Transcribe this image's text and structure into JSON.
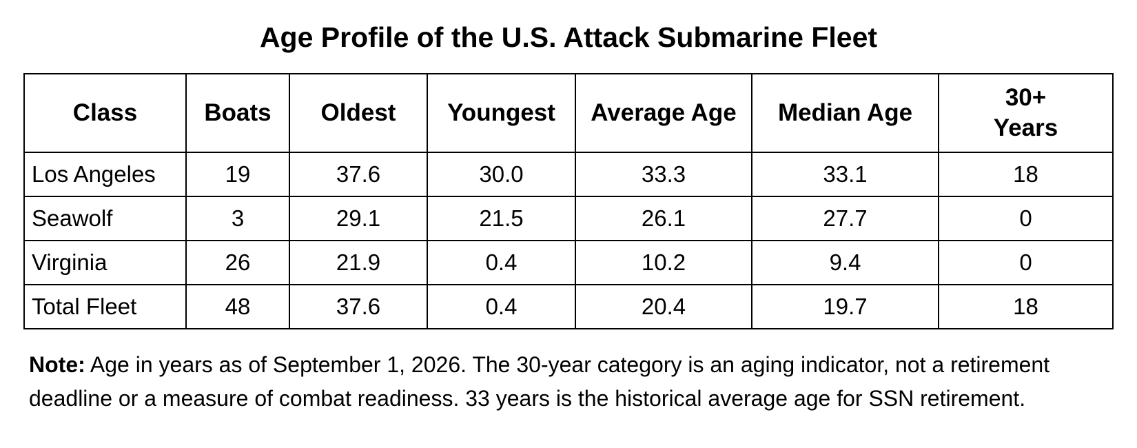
{
  "title": "Age Profile of the U.S. Attack Submarine Fleet",
  "table": {
    "headers": [
      "Class",
      "Boats",
      "Oldest",
      "Youngest",
      "Average Age",
      "Median Age",
      "30+ Years"
    ],
    "rows": [
      [
        "Los Angeles",
        "19",
        "37.6",
        "30.0",
        "33.3",
        "33.1",
        "18"
      ],
      [
        "Seawolf",
        "3",
        "29.1",
        "21.5",
        "26.1",
        "27.7",
        "0"
      ],
      [
        "Virginia",
        "26",
        "21.9",
        "0.4",
        "10.2",
        "9.4",
        "0"
      ],
      [
        "Total Fleet",
        "48",
        "37.6",
        "0.4",
        "20.4",
        "19.7",
        "18"
      ]
    ]
  },
  "note": {
    "label": "Note:",
    "text": " Age in years as of September 1, 2026. The 30-year category is an aging indicator, not a retirement deadline or a measure of combat readiness. 33 years is the historical average age for SSN retirement."
  }
}
